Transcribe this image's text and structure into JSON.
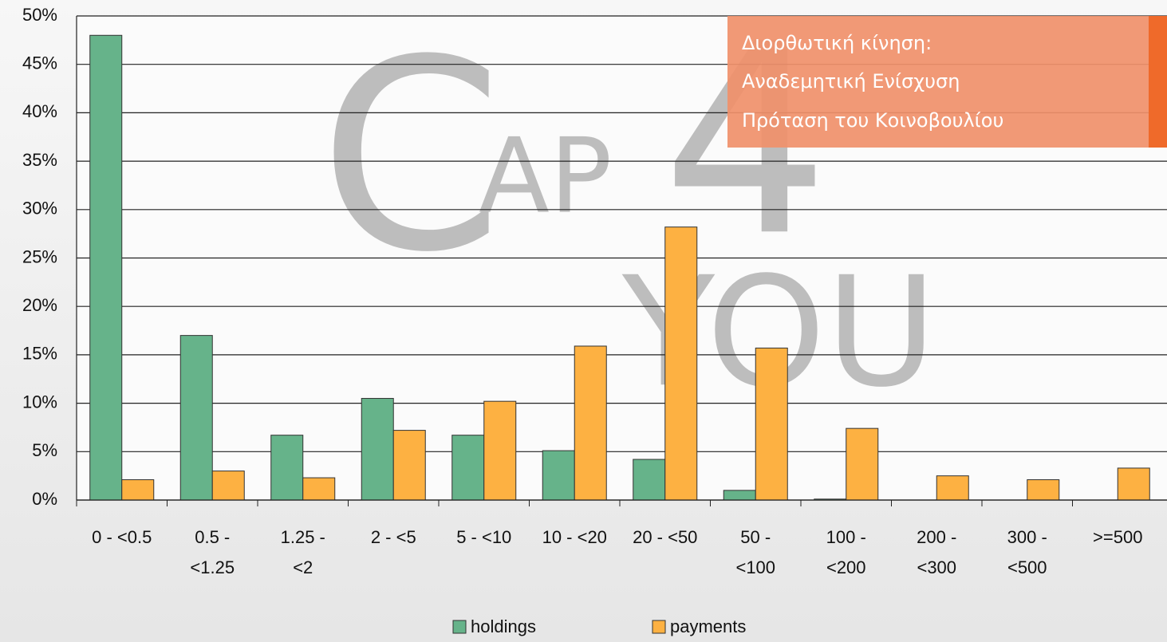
{
  "chart_data": {
    "type": "bar",
    "categories": [
      "0 - <0.5",
      "0.5 -\n<1.25",
      "1.25 -\n<2",
      "2 - <5",
      "5 - <10",
      "10 - <20",
      "20 - <50",
      "50 -\n<100",
      "100 -\n<200",
      "200 -\n<300",
      "300 -\n<500",
      ">=500"
    ],
    "series": [
      {
        "name": "holdings",
        "color": "#66b38a",
        "values": [
          48,
          17,
          6.7,
          10.5,
          6.7,
          5.1,
          4.2,
          1.0,
          0.1,
          0,
          0,
          0
        ]
      },
      {
        "name": "payments",
        "color": "#fdb142",
        "values": [
          2.1,
          3.0,
          2.3,
          7.2,
          10.2,
          15.9,
          28.2,
          15.7,
          7.4,
          2.5,
          2.1,
          3.3
        ]
      }
    ],
    "ylim": [
      0,
      50
    ],
    "yticks": [
      {
        "value": 0,
        "label": "0%"
      },
      {
        "value": 5,
        "label": "5%"
      },
      {
        "value": 10,
        "label": "10%"
      },
      {
        "value": 15,
        "label": "15%"
      },
      {
        "value": 20,
        "label": "20%"
      },
      {
        "value": 25,
        "label": "25%"
      },
      {
        "value": 30,
        "label": "30%"
      },
      {
        "value": 35,
        "label": "35%"
      },
      {
        "value": 40,
        "label": "40%"
      },
      {
        "value": 45,
        "label": "45%"
      },
      {
        "value": 50,
        "label": "50%"
      }
    ],
    "grid": true,
    "legend": "bottom",
    "annotation": [
      "Διορθωτική κίνηση:",
      "Αναδεμητική  Ενίσχυση",
      "Πρόταση του Κοινοβουλίου"
    ],
    "watermark": [
      "C",
      "AP",
      "4",
      "YOU"
    ]
  }
}
